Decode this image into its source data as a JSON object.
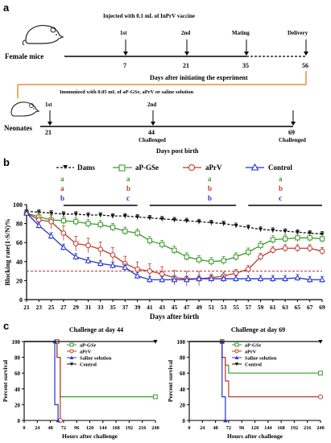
{
  "panel_a": {
    "letter": "a",
    "female_label": "Female mice",
    "injection_note": "Injected with 0.1 mL of InPrV vaccine",
    "female_marks": [
      {
        "top": "1st",
        "bottom": "7"
      },
      {
        "top": "2nd",
        "bottom": "21"
      },
      {
        "top": "Mating",
        "bottom": "35"
      },
      {
        "top": "Delivery",
        "bottom": "56"
      }
    ],
    "female_axis_label": "Days after initiating the experiment",
    "neonate_label": "Neonates",
    "immunize_note": "Immunized with 0.05 mL of aP-GSe, aPrV or saline solution",
    "neonate_marks": [
      {
        "top": "1st",
        "bottom": "21",
        "note": ""
      },
      {
        "top": "2nd",
        "bottom": "44",
        "note": "Challenged"
      },
      {
        "top": "",
        "bottom": "69",
        "note": "Challenged"
      }
    ],
    "neonate_axis_label": "Days post birth"
  },
  "panel_b": {
    "letter": "b",
    "legend": [
      "Dams",
      "aP-GSe",
      "aPrV",
      "Control"
    ],
    "sig_groups": [
      {
        "a1": "a",
        "a2": "a",
        "b": "b"
      },
      {
        "a1": "a",
        "a2": "b",
        "b": "c"
      },
      {
        "a1": "a",
        "a2": "b",
        "b": "b"
      },
      {
        "a1": "a",
        "a2": "b",
        "b": "c"
      }
    ],
    "colors": {
      "dams": "#111111",
      "apgse": "#3a9a2a",
      "aprv": "#c0392b",
      "control": "#2233cc",
      "sig_a": "#3a9a2a",
      "sig_b": "#c0392b",
      "sig_c": "#2233cc"
    }
  },
  "panel_c": {
    "letter": "c"
  },
  "chart_data": [
    {
      "type": "line",
      "ylabel": "Blocking rate(1-S/N)%",
      "xlabel": "Days after birth",
      "x": [
        21,
        23,
        25,
        27,
        29,
        31,
        33,
        35,
        37,
        39,
        41,
        43,
        45,
        47,
        49,
        51,
        53,
        55,
        57,
        59,
        61,
        63,
        65,
        67,
        69
      ],
      "xticks": [
        "21",
        "23",
        "25",
        "27",
        "29",
        "31",
        "33",
        "35",
        "37",
        "39",
        "41",
        "43",
        "45",
        "47",
        "49",
        "51",
        "53",
        "55",
        "57",
        "59",
        "61",
        "63",
        "65",
        "67",
        "69"
      ],
      "yticks": [
        "0",
        "20",
        "40",
        "60",
        "80",
        "100"
      ],
      "xlim": [
        21,
        69
      ],
      "ylim": [
        0,
        100
      ],
      "threshold": 30,
      "series": [
        {
          "name": "Dams",
          "values": [
            93,
            92,
            91,
            90,
            90,
            89,
            89,
            88,
            88,
            87,
            86,
            85,
            84,
            83,
            82,
            81,
            80,
            78,
            76,
            74,
            73,
            72,
            71,
            70,
            69
          ]
        },
        {
          "name": "aP-GSe",
          "values": [
            91,
            87,
            84,
            83,
            82,
            80,
            79,
            76,
            72,
            70,
            62,
            58,
            52,
            45,
            42,
            40,
            41,
            45,
            50,
            57,
            63,
            64,
            65,
            65,
            64
          ]
        },
        {
          "name": "aPrV",
          "values": [
            91,
            84,
            82,
            70,
            59,
            57,
            53,
            47,
            38,
            32,
            30,
            27,
            23,
            22,
            22,
            23,
            25,
            28,
            32,
            45,
            52,
            54,
            54,
            54,
            51
          ]
        },
        {
          "name": "Control",
          "values": [
            91,
            78,
            67,
            55,
            45,
            41,
            38,
            36,
            34,
            25,
            21,
            21,
            21,
            21,
            22,
            22,
            22,
            22,
            22,
            22,
            22,
            22,
            23,
            21,
            21
          ]
        }
      ]
    },
    {
      "type": "line",
      "title": "Challenge at day 44",
      "ylabel": "Percent survival",
      "xlabel": "Hours after challenge",
      "xticks": [
        "0",
        "24",
        "48",
        "72",
        "96",
        "120",
        "144",
        "168",
        "192",
        "216",
        "240"
      ],
      "yticks": [
        "0",
        "20",
        "40",
        "60",
        "80",
        "100"
      ],
      "xlim": [
        0,
        240
      ],
      "ylim": [
        0,
        100
      ],
      "series": [
        {
          "name": "aP-GSe",
          "values": [
            [
              0,
              100
            ],
            [
              60,
              100
            ],
            [
              60,
              80
            ],
            [
              66,
              80
            ],
            [
              66,
              30
            ],
            [
              240,
              30
            ]
          ]
        },
        {
          "name": "aPrV",
          "values": [
            [
              0,
              100
            ],
            [
              60,
              100
            ],
            [
              60,
              80
            ],
            [
              66,
              80
            ],
            [
              66,
              0
            ]
          ]
        },
        {
          "name": "Saline solution",
          "values": [
            [
              0,
              100
            ],
            [
              56,
              100
            ],
            [
              56,
              20
            ],
            [
              62,
              20
            ],
            [
              62,
              0
            ]
          ]
        },
        {
          "name": "Control",
          "values": [
            [
              0,
              100
            ],
            [
              240,
              100
            ]
          ]
        }
      ]
    },
    {
      "type": "line",
      "title": "Challenge at day 69",
      "ylabel": "Percent survival",
      "xlabel": "Hours after challenge",
      "xticks": [
        "0",
        "24",
        "48",
        "72",
        "96",
        "120",
        "144",
        "168",
        "192",
        "216",
        "240"
      ],
      "yticks": [
        "0",
        "20",
        "40",
        "60",
        "80",
        "100"
      ],
      "xlim": [
        0,
        240
      ],
      "ylim": [
        0,
        100
      ],
      "series": [
        {
          "name": "aP-GSe",
          "values": [
            [
              0,
              100
            ],
            [
              60,
              100
            ],
            [
              60,
              80
            ],
            [
              66,
              80
            ],
            [
              66,
              70
            ],
            [
              72,
              70
            ],
            [
              72,
              60
            ],
            [
              240,
              60
            ]
          ]
        },
        {
          "name": "aPrV",
          "values": [
            [
              0,
              100
            ],
            [
              60,
              100
            ],
            [
              60,
              80
            ],
            [
              66,
              80
            ],
            [
              66,
              50
            ],
            [
              72,
              50
            ],
            [
              72,
              30
            ],
            [
              240,
              30
            ]
          ]
        },
        {
          "name": "Saline solution",
          "values": [
            [
              0,
              100
            ],
            [
              60,
              100
            ],
            [
              60,
              30
            ],
            [
              66,
              30
            ],
            [
              66,
              0
            ]
          ]
        },
        {
          "name": "Control",
          "values": [
            [
              0,
              100
            ],
            [
              240,
              100
            ]
          ]
        }
      ]
    }
  ]
}
